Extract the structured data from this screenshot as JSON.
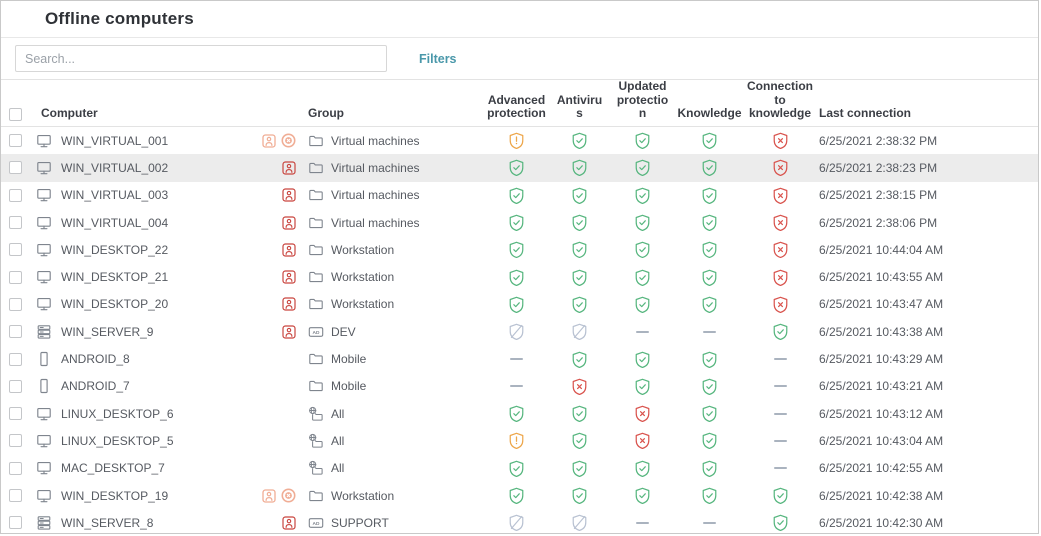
{
  "header": {
    "title": "Offline computers"
  },
  "toolbar": {
    "search_placeholder": "Search...",
    "filters_label": "Filters"
  },
  "colors": {
    "accent": "#4a98aa",
    "ok": "#57b67f",
    "warning": "#eda64a",
    "error": "#d9544e",
    "disabled": "#b9c2d2",
    "dash": "#aab3bf",
    "badge_red": "#c9453f",
    "badge_salmon": "#f0ad95",
    "icon_gray": "#7f858e"
  },
  "table": {
    "columns": [
      {
        "key": "computer",
        "label": "Computer"
      },
      {
        "key": "group",
        "label": "Group"
      },
      {
        "key": "advanced_protection",
        "label": "Advanced\nprotection"
      },
      {
        "key": "antivirus",
        "label": "Antiviru\ns"
      },
      {
        "key": "updated_protection",
        "label": "Updated\nprotectio\nn"
      },
      {
        "key": "knowledge",
        "label": "Knowledge"
      },
      {
        "key": "connection_to_knowledge",
        "label": "Connection\nto\nknowledge"
      },
      {
        "key": "last_connection",
        "label": "Last connection"
      }
    ],
    "sort": {
      "column": "last_connection",
      "direction": "desc"
    },
    "rows": [
      {
        "name": "WIN_VIRTUAL_001",
        "device": "desktop",
        "badges": [
          "user-orange",
          "delete-orange"
        ],
        "group": {
          "icon": "folder",
          "label": "Virtual machines"
        },
        "statuses": {
          "advanced": "warning",
          "antivirus": "ok",
          "updated": "ok",
          "knowledge": "ok",
          "connection": "error"
        },
        "last_connection": "6/25/2021 2:38:32 PM",
        "highlighted": false
      },
      {
        "name": "WIN_VIRTUAL_002",
        "device": "desktop",
        "badges": [
          "user-red"
        ],
        "group": {
          "icon": "folder",
          "label": "Virtual machines"
        },
        "statuses": {
          "advanced": "ok",
          "antivirus": "ok",
          "updated": "ok",
          "knowledge": "ok",
          "connection": "error"
        },
        "last_connection": "6/25/2021 2:38:23 PM",
        "highlighted": true
      },
      {
        "name": "WIN_VIRTUAL_003",
        "device": "desktop",
        "badges": [
          "user-red"
        ],
        "group": {
          "icon": "folder",
          "label": "Virtual machines"
        },
        "statuses": {
          "advanced": "ok",
          "antivirus": "ok",
          "updated": "ok",
          "knowledge": "ok",
          "connection": "error"
        },
        "last_connection": "6/25/2021 2:38:15 PM",
        "highlighted": false
      },
      {
        "name": "WIN_VIRTUAL_004",
        "device": "desktop",
        "badges": [
          "user-red"
        ],
        "group": {
          "icon": "folder",
          "label": "Virtual machines"
        },
        "statuses": {
          "advanced": "ok",
          "antivirus": "ok",
          "updated": "ok",
          "knowledge": "ok",
          "connection": "error"
        },
        "last_connection": "6/25/2021 2:38:06 PM",
        "highlighted": false
      },
      {
        "name": "WIN_DESKTOP_22",
        "device": "desktop",
        "badges": [
          "user-red"
        ],
        "group": {
          "icon": "folder",
          "label": "Workstation"
        },
        "statuses": {
          "advanced": "ok",
          "antivirus": "ok",
          "updated": "ok",
          "knowledge": "ok",
          "connection": "error"
        },
        "last_connection": "6/25/2021 10:44:04 AM",
        "highlighted": false
      },
      {
        "name": "WIN_DESKTOP_21",
        "device": "desktop",
        "badges": [
          "user-red"
        ],
        "group": {
          "icon": "folder",
          "label": "Workstation"
        },
        "statuses": {
          "advanced": "ok",
          "antivirus": "ok",
          "updated": "ok",
          "knowledge": "ok",
          "connection": "error"
        },
        "last_connection": "6/25/2021 10:43:55 AM",
        "highlighted": false
      },
      {
        "name": "WIN_DESKTOP_20",
        "device": "desktop",
        "badges": [
          "user-red"
        ],
        "group": {
          "icon": "folder",
          "label": "Workstation"
        },
        "statuses": {
          "advanced": "ok",
          "antivirus": "ok",
          "updated": "ok",
          "knowledge": "ok",
          "connection": "error"
        },
        "last_connection": "6/25/2021 10:43:47 AM",
        "highlighted": false
      },
      {
        "name": "WIN_SERVER_9",
        "device": "server",
        "badges": [
          "user-red"
        ],
        "group": {
          "icon": "ad",
          "label": "DEV"
        },
        "statuses": {
          "advanced": "disabled",
          "antivirus": "disabled",
          "updated": "none",
          "knowledge": "none",
          "connection": "ok"
        },
        "last_connection": "6/25/2021 10:43:38 AM",
        "highlighted": false
      },
      {
        "name": "ANDROID_8",
        "device": "mobile",
        "badges": [],
        "group": {
          "icon": "folder",
          "label": "Mobile"
        },
        "statuses": {
          "advanced": "none",
          "antivirus": "ok",
          "updated": "ok",
          "knowledge": "ok",
          "connection": "none"
        },
        "last_connection": "6/25/2021 10:43:29 AM",
        "highlighted": false
      },
      {
        "name": "ANDROID_7",
        "device": "mobile",
        "badges": [],
        "group": {
          "icon": "folder",
          "label": "Mobile"
        },
        "statuses": {
          "advanced": "none",
          "antivirus": "error",
          "updated": "ok",
          "knowledge": "ok",
          "connection": "none"
        },
        "last_connection": "6/25/2021 10:43:21 AM",
        "highlighted": false
      },
      {
        "name": "LINUX_DESKTOP_6",
        "device": "desktop",
        "badges": [],
        "group": {
          "icon": "globe",
          "label": "All"
        },
        "statuses": {
          "advanced": "ok",
          "antivirus": "ok",
          "updated": "error",
          "knowledge": "ok",
          "connection": "none"
        },
        "last_connection": "6/25/2021 10:43:12 AM",
        "highlighted": false
      },
      {
        "name": "LINUX_DESKTOP_5",
        "device": "desktop",
        "badges": [],
        "group": {
          "icon": "globe",
          "label": "All"
        },
        "statuses": {
          "advanced": "warning",
          "antivirus": "ok",
          "updated": "error",
          "knowledge": "ok",
          "connection": "none"
        },
        "last_connection": "6/25/2021 10:43:04 AM",
        "highlighted": false
      },
      {
        "name": "MAC_DESKTOP_7",
        "device": "desktop",
        "badges": [],
        "group": {
          "icon": "globe",
          "label": "All"
        },
        "statuses": {
          "advanced": "ok",
          "antivirus": "ok",
          "updated": "ok",
          "knowledge": "ok",
          "connection": "none"
        },
        "last_connection": "6/25/2021 10:42:55 AM",
        "highlighted": false
      },
      {
        "name": "WIN_DESKTOP_19",
        "device": "desktop",
        "badges": [
          "user-orange",
          "delete-orange"
        ],
        "group": {
          "icon": "folder",
          "label": "Workstation"
        },
        "statuses": {
          "advanced": "ok",
          "antivirus": "ok",
          "updated": "ok",
          "knowledge": "ok",
          "connection": "ok"
        },
        "last_connection": "6/25/2021 10:42:38 AM",
        "highlighted": false
      },
      {
        "name": "WIN_SERVER_8",
        "device": "server",
        "badges": [
          "user-red"
        ],
        "group": {
          "icon": "ad",
          "label": "SUPPORT"
        },
        "statuses": {
          "advanced": "disabled",
          "antivirus": "disabled",
          "updated": "none",
          "knowledge": "none",
          "connection": "ok"
        },
        "last_connection": "6/25/2021 10:42:30 AM",
        "highlighted": false
      }
    ]
  }
}
